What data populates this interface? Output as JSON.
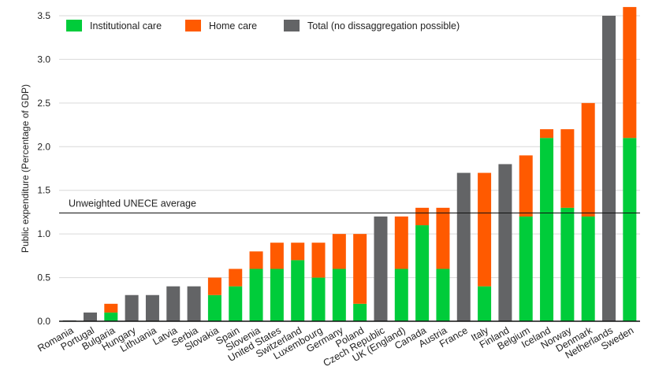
{
  "chart_data": {
    "type": "bar",
    "stacked": true,
    "ylabel": "Public expenditure (Percentage of GDP)",
    "xlabel": "",
    "ylim": [
      0,
      3.5
    ],
    "yticks": [
      "0.0",
      "0.5",
      "1.0",
      "1.5",
      "2.0",
      "2.5",
      "3.0",
      "3.5"
    ],
    "grid": "horizontal",
    "legend_position": "top-left",
    "categories": [
      "Romania",
      "Portugal",
      "Bulgaria",
      "Hungary",
      "Lithuania",
      "Latvia",
      "Serbia",
      "Slovakia",
      "Spain",
      "Slovenia",
      "United States",
      "Switzerland",
      "Luxembourg",
      "Germany",
      "Poland",
      "Czech Republic",
      "UK (England)",
      "Canada",
      "Austria",
      "France",
      "Italy",
      "Finland",
      "Belgium",
      "Iceland",
      "Norway",
      "Denmark",
      "Netherlands",
      "Sweden"
    ],
    "series": [
      {
        "name": "Institutional care",
        "color": "#00cc3a",
        "values": [
          0,
          0,
          0.1,
          0,
          0,
          0,
          0,
          0.3,
          0.4,
          0.6,
          0.6,
          0.7,
          0.5,
          0.6,
          0.2,
          0,
          0.6,
          1.1,
          0.6,
          0,
          0.4,
          0,
          1.2,
          2.1,
          1.3,
          1.2,
          0,
          2.1
        ]
      },
      {
        "name": "Home care",
        "color": "#ff5a00",
        "values": [
          0,
          0,
          0.1,
          0,
          0,
          0,
          0,
          0.2,
          0.2,
          0.2,
          0.3,
          0.2,
          0.4,
          0.4,
          0.8,
          0,
          0.6,
          0.2,
          0.7,
          0,
          1.3,
          0,
          0.7,
          0.1,
          0.9,
          1.3,
          0,
          1.5
        ]
      },
      {
        "name": "Total (no dissaggregation possible)",
        "color": "#636466",
        "values": [
          0.01,
          0.1,
          0,
          0.3,
          0.3,
          0.4,
          0.4,
          0,
          0,
          0,
          0,
          0,
          0,
          0,
          0,
          1.2,
          0,
          0,
          0,
          1.7,
          0,
          1.8,
          0,
          0,
          0,
          0,
          3.5,
          0
        ]
      }
    ],
    "reference_line": {
      "label": "Unweighted UNECE average",
      "value": 1.24
    }
  }
}
